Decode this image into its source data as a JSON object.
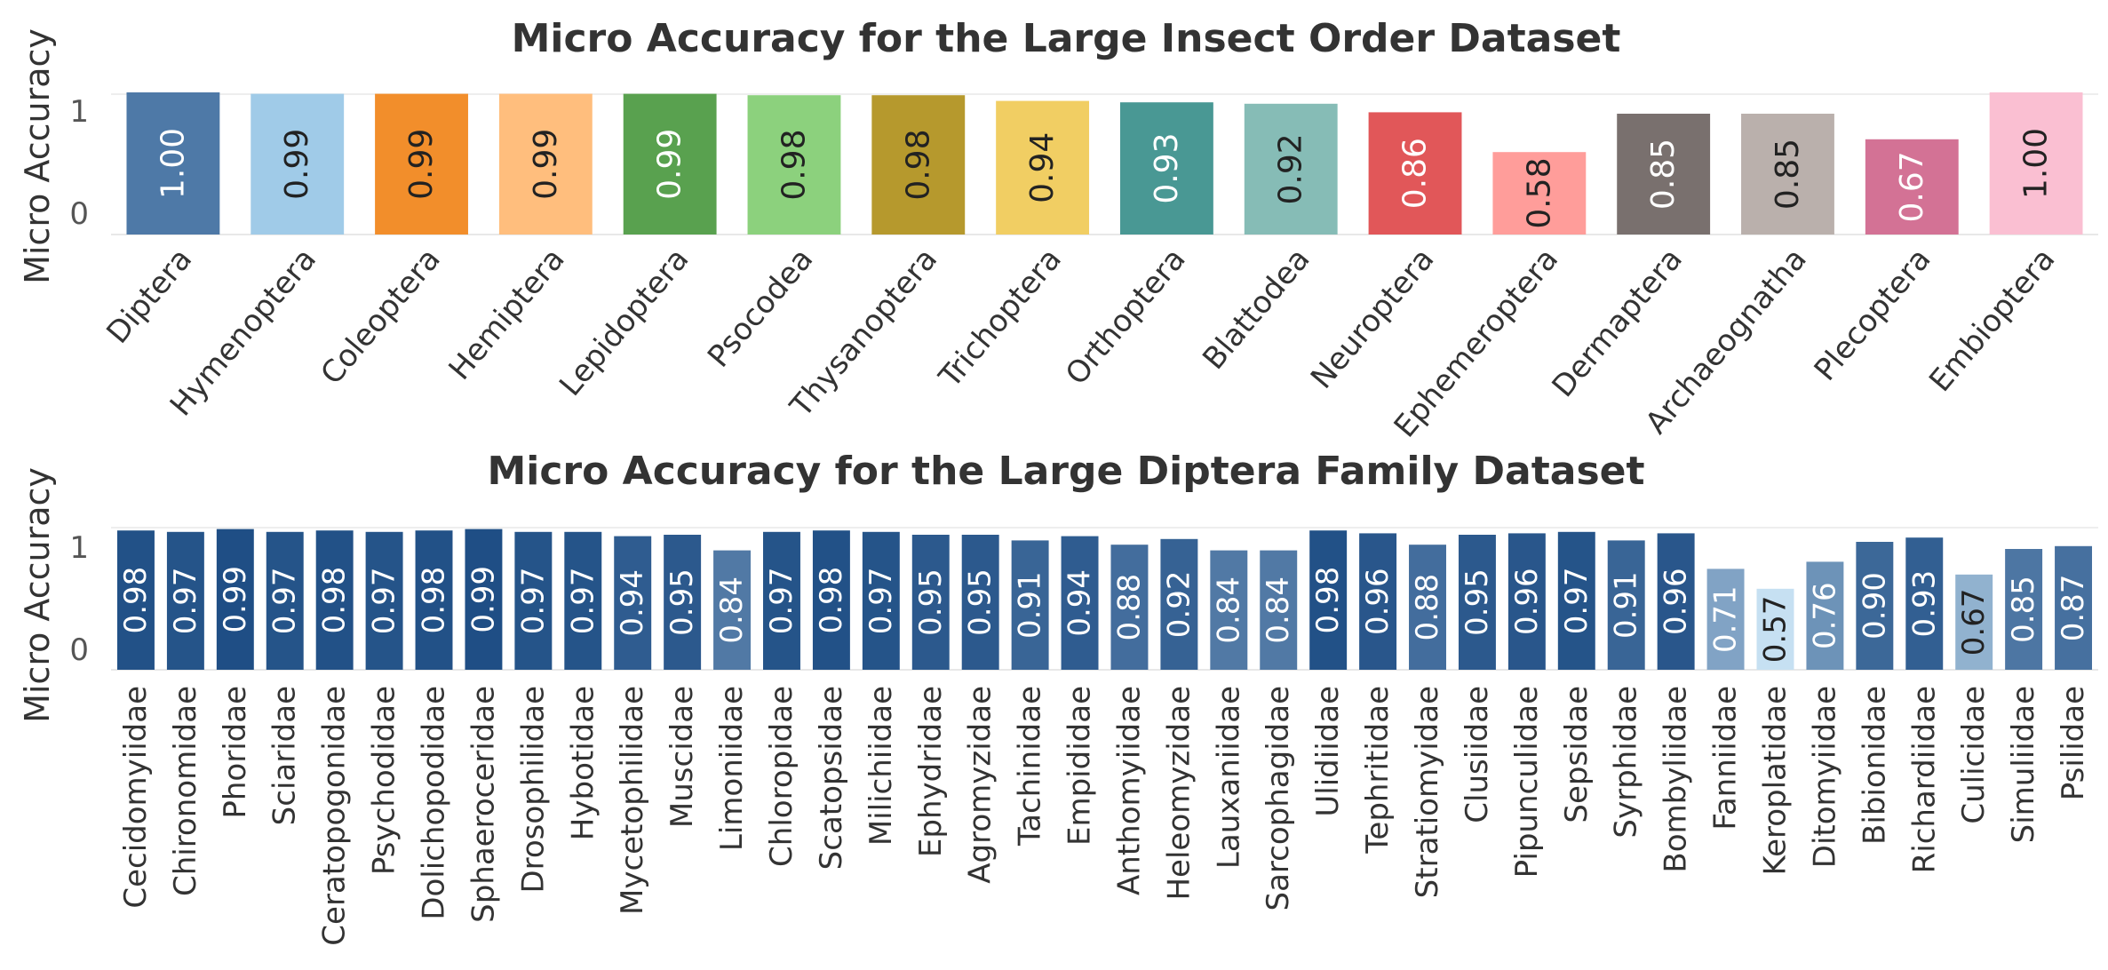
{
  "chart_data": [
    {
      "type": "bar",
      "title": "Micro Accuracy for the Large Insect Order Dataset",
      "xlabel": "",
      "ylabel": "Micro Accuracy",
      "ylim": [
        0,
        1
      ],
      "yticks": [
        "0",
        "1"
      ],
      "grid": true,
      "categories": [
        "Diptera",
        "Hymenoptera",
        "Coleoptera",
        "Hemiptera",
        "Lepidoptera",
        "Psocodea",
        "Thysanoptera",
        "Trichoptera",
        "Orthoptera",
        "Blattodea",
        "Neuroptera",
        "Ephemeroptera",
        "Dermaptera",
        "Archaeognatha",
        "Plecoptera",
        "Embioptera"
      ],
      "values": [
        1.0,
        0.99,
        0.99,
        0.99,
        0.99,
        0.98,
        0.98,
        0.94,
        0.93,
        0.92,
        0.86,
        0.58,
        0.85,
        0.85,
        0.67,
        1.0
      ],
      "labels": [
        "1.00",
        "0.99",
        "0.99",
        "0.99",
        "0.99",
        "0.98",
        "0.98",
        "0.94",
        "0.93",
        "0.92",
        "0.86",
        "0.58",
        "0.85",
        "0.85",
        "0.67",
        "1.00"
      ],
      "colors": [
        "#4e79a7",
        "#a0cbe8",
        "#f28e2b",
        "#ffbe7d",
        "#59a14f",
        "#8cd17d",
        "#b6992d",
        "#f1ce63",
        "#499894",
        "#86bcb6",
        "#e15759",
        "#ff9d9a",
        "#79706e",
        "#bab0ac",
        "#d37295",
        "#fabfd2"
      ],
      "label_colors": [
        "#ffffff",
        "#222222",
        "#222222",
        "#222222",
        "#ffffff",
        "#222222",
        "#222222",
        "#222222",
        "#ffffff",
        "#222222",
        "#ffffff",
        "#222222",
        "#ffffff",
        "#222222",
        "#ffffff",
        "#222222"
      ]
    },
    {
      "type": "bar",
      "title": "Micro Accuracy for the Large Diptera Family Dataset",
      "xlabel": "",
      "ylabel": "Micro Accuracy",
      "ylim": [
        0,
        1
      ],
      "yticks": [
        "0",
        "1"
      ],
      "grid": true,
      "categories": [
        "Cecidomyiidae",
        "Chironomidae",
        "Phoridae",
        "Sciaridae",
        "Ceratopogonidae",
        "Psychodidae",
        "Dolichopodidae",
        "Sphaeroceridae",
        "Drosophilidae",
        "Hybotidae",
        "Mycetophilidae",
        "Muscidae",
        "Limoniidae",
        "Chloropidae",
        "Scatopsidae",
        "Milichiidae",
        "Ephydridae",
        "Agromyzidae",
        "Tachinidae",
        "Empididae",
        "Anthomyiidae",
        "Heleomyzidae",
        "Lauxaniidae",
        "Sarcophagidae",
        "Ulidiidae",
        "Tephritidae",
        "Stratiomyidae",
        "Clusiidae",
        "Pipunculidae",
        "Sepsidae",
        "Syrphidae",
        "Bombyliidae",
        "Fanniidae",
        "Keroplatidae",
        "Ditomyiidae",
        "Bibionidae",
        "Richardiidae",
        "Culicidae",
        "Simuliidae",
        "Psilidae"
      ],
      "values": [
        0.98,
        0.97,
        0.99,
        0.97,
        0.98,
        0.97,
        0.98,
        0.99,
        0.97,
        0.97,
        0.94,
        0.95,
        0.84,
        0.97,
        0.98,
        0.97,
        0.95,
        0.95,
        0.91,
        0.94,
        0.88,
        0.92,
        0.84,
        0.84,
        0.98,
        0.96,
        0.88,
        0.95,
        0.96,
        0.97,
        0.91,
        0.96,
        0.71,
        0.57,
        0.76,
        0.9,
        0.93,
        0.67,
        0.85,
        0.87
      ],
      "labels": [
        "0.98",
        "0.97",
        "0.99",
        "0.97",
        "0.98",
        "0.97",
        "0.98",
        "0.99",
        "0.97",
        "0.97",
        "0.94",
        "0.95",
        "0.84",
        "0.97",
        "0.98",
        "0.97",
        "0.95",
        "0.95",
        "0.91",
        "0.94",
        "0.88",
        "0.92",
        "0.84",
        "0.84",
        "0.98",
        "0.96",
        "0.88",
        "0.95",
        "0.96",
        "0.97",
        "0.91",
        "0.96",
        "0.71",
        "0.57",
        "0.76",
        "0.90",
        "0.93",
        "0.67",
        "0.85",
        "0.87"
      ],
      "color_scale": [
        "#c6e0f2",
        "#1f4e85"
      ]
    }
  ]
}
